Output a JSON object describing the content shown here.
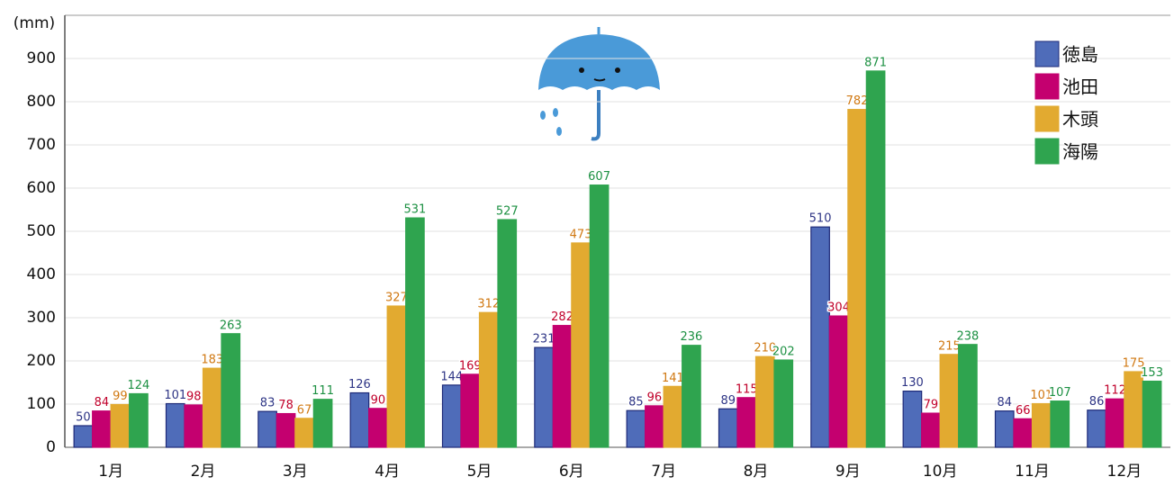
{
  "chart_data": {
    "type": "bar",
    "y_label": "(mm)",
    "categories": [
      "1月",
      "2月",
      "3月",
      "4月",
      "5月",
      "6月",
      "7月",
      "8月",
      "9月",
      "10月",
      "11月",
      "12月"
    ],
    "series": [
      {
        "name": "徳島",
        "color": "#4f6cb9",
        "values": [
          50,
          101,
          83,
          126,
          144,
          231,
          85,
          89,
          510,
          130,
          84,
          86
        ]
      },
      {
        "name": "池田",
        "color": "#c4006f",
        "values": [
          84,
          98,
          78,
          90,
          169,
          282,
          96,
          115,
          304,
          79,
          66,
          112
        ]
      },
      {
        "name": "木頭",
        "color": "#e2aa30",
        "values": [
          99,
          183,
          67,
          327,
          312,
          473,
          141,
          210,
          782,
          215,
          101,
          175
        ]
      },
      {
        "name": "海陽",
        "color": "#2fa44f",
        "values": [
          124,
          263,
          111,
          531,
          527,
          607,
          236,
          202,
          871,
          238,
          107,
          153
        ]
      }
    ],
    "ylim": [
      0,
      1000
    ],
    "yticks": [
      0,
      100,
      200,
      300,
      400,
      500,
      600,
      700,
      800,
      900
    ],
    "grid": true
  }
}
